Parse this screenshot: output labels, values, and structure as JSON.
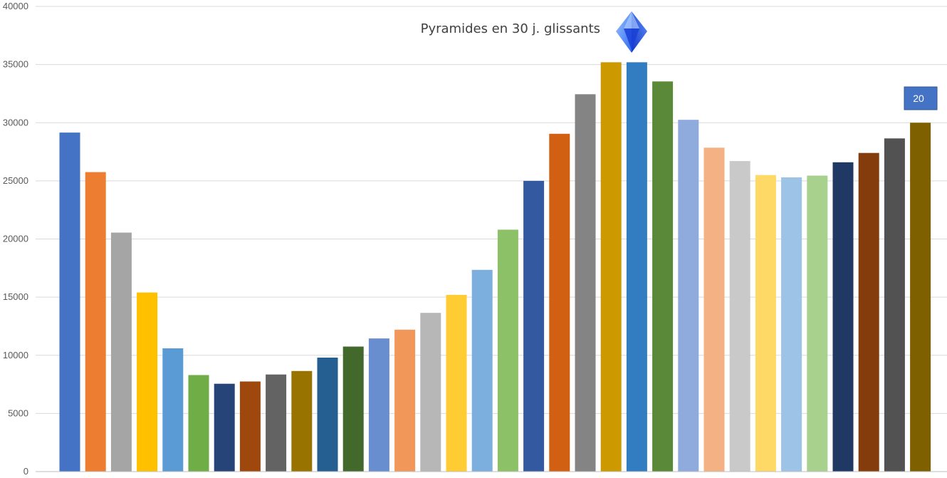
{
  "chart_data": {
    "type": "bar",
    "title": "Pyramides en 30 j. glissants",
    "xlabel": "",
    "ylabel": "",
    "ylim": [
      0,
      40000
    ],
    "yticks": [
      0,
      5000,
      10000,
      15000,
      20000,
      25000,
      30000,
      35000,
      40000
    ],
    "grid": true,
    "legend": "none",
    "values": [
      29150,
      25750,
      20550,
      15400,
      10600,
      8300,
      7550,
      7750,
      8350,
      8650,
      9800,
      10750,
      11450,
      12200,
      13650,
      15200,
      17350,
      20800,
      25000,
      29050,
      32450,
      35200,
      35200,
      33550,
      30250,
      27850,
      26700,
      25500,
      25300,
      25450,
      26600,
      27400,
      28650,
      30000
    ],
    "colors": [
      "#4472C4",
      "#ED7D31",
      "#A5A5A5",
      "#FFC000",
      "#5B9BD5",
      "#70AD47",
      "#264478",
      "#9E480E",
      "#636363",
      "#997300",
      "#255E91",
      "#43682B",
      "#698ED0",
      "#F1975A",
      "#B7B7B7",
      "#FFCD33",
      "#7CAFDD",
      "#8CC168",
      "#335AA1",
      "#D26012",
      "#848484",
      "#CC9A00",
      "#327DC2",
      "#5A8A39",
      "#8FAADC",
      "#F4B183",
      "#C9C9C9",
      "#FFD966",
      "#9DC3E6",
      "#A9D18E",
      "#203864",
      "#843C0C",
      "#525252",
      "#7F6000"
    ],
    "badge_label": "20",
    "badge_color": "#4472C4",
    "marker_icon": "diamond-gem-icon"
  }
}
